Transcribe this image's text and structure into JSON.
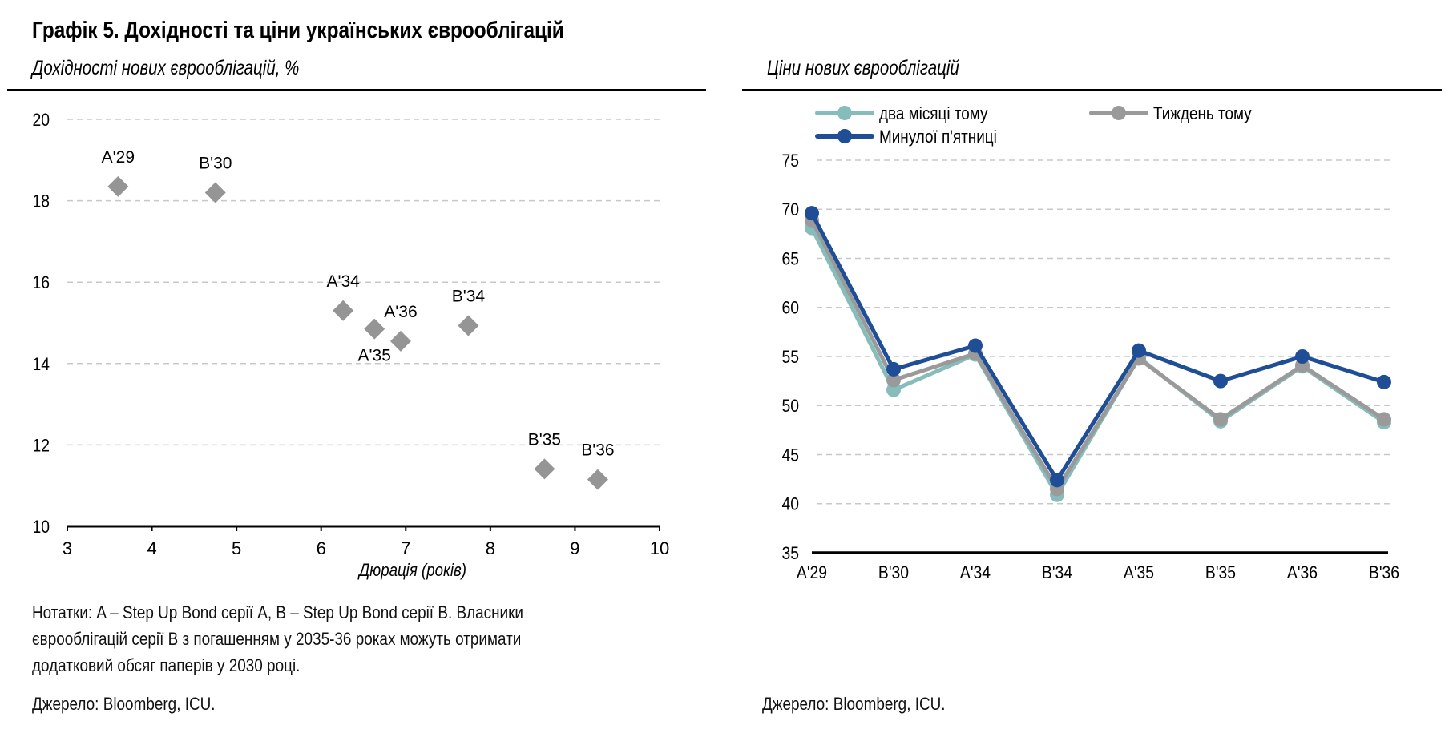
{
  "title": "Графік 5. Дохідності та ціни українських єврооблігацій",
  "left_panel": {
    "subtitle": "Дохідності нових єврооблігацій, %",
    "notes": [
      "Нотатки: A – Step Up Bond серії A, B – Step Up Bond серії B. Власники",
      "єврооблігацій серії B з погашенням у 2035-36 роках можуть отримати",
      "додатковий обсяг паперів у 2030 році."
    ],
    "source": "Джерело: Bloomberg, ICU."
  },
  "right_panel": {
    "subtitle": "Ціни нових єврооблігацій",
    "source": "Джерело: Bloomberg, ICU."
  },
  "chart_data": [
    {
      "type": "scatter",
      "title": "Дохідності нових єврооблігацій, %",
      "xlabel": "Дюрація (років)",
      "ylabel": "",
      "xlim": [
        3,
        10
      ],
      "ylim": [
        10,
        20
      ],
      "xticks": [
        3,
        4,
        5,
        6,
        7,
        8,
        9,
        10
      ],
      "yticks": [
        10,
        12,
        14,
        16,
        18,
        20
      ],
      "grid": "horizontal-dashed",
      "marker": "diamond",
      "color": "#959595",
      "points": [
        {
          "label": "A'29",
          "x": 3.6,
          "y": 18.35,
          "label_pos": "above"
        },
        {
          "label": "B'30",
          "x": 4.75,
          "y": 18.2,
          "label_pos": "above"
        },
        {
          "label": "A'34",
          "x": 6.26,
          "y": 15.3,
          "label_pos": "above"
        },
        {
          "label": "A'35",
          "x": 6.63,
          "y": 14.85,
          "label_pos": "below"
        },
        {
          "label": "A'36",
          "x": 6.94,
          "y": 14.55,
          "label_pos": "above"
        },
        {
          "label": "B'34",
          "x": 7.74,
          "y": 14.93,
          "label_pos": "above"
        },
        {
          "label": "B'35",
          "x": 8.64,
          "y": 11.41,
          "label_pos": "above"
        },
        {
          "label": "B'36",
          "x": 9.27,
          "y": 11.15,
          "label_pos": "above"
        }
      ]
    },
    {
      "type": "line",
      "title": "Ціни нових єврооблігацій",
      "xlabel": "",
      "ylabel": "",
      "ylim": [
        35,
        75
      ],
      "yticks": [
        35,
        40,
        45,
        50,
        55,
        60,
        65,
        70,
        75
      ],
      "grid": "horizontal-dashed",
      "legend_position": "top-left",
      "categories": [
        "A'29",
        "B'30",
        "A'34",
        "B'34",
        "A'35",
        "B'35",
        "A'36",
        "B'36"
      ],
      "series": [
        {
          "name": "два місяці тому",
          "color": "#86BDBB",
          "values": [
            68.1,
            51.6,
            55.2,
            40.9,
            54.9,
            48.4,
            54.0,
            48.3
          ]
        },
        {
          "name": "Тиждень тому",
          "color": "#9A9A9A",
          "values": [
            68.9,
            52.6,
            55.3,
            41.5,
            54.8,
            48.6,
            54.1,
            48.6
          ]
        },
        {
          "name": "Минулої п'ятниці",
          "color": "#1F4E96",
          "values": [
            69.6,
            53.7,
            56.1,
            42.4,
            55.6,
            52.5,
            55.0,
            52.4
          ]
        }
      ]
    }
  ]
}
